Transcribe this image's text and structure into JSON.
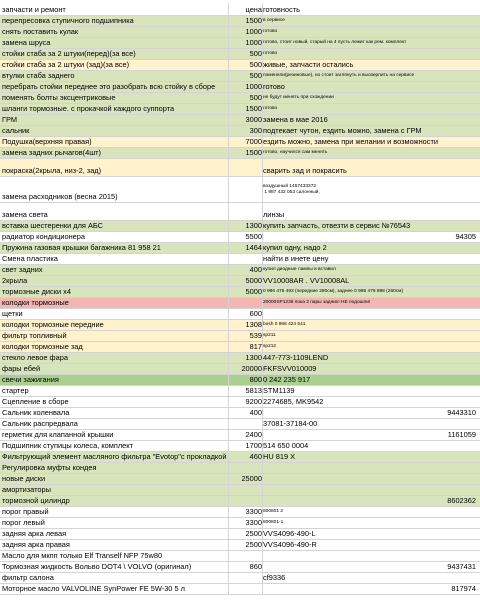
{
  "table": {
    "header": {
      "name": "запчасти и ремонт",
      "price": "цена",
      "status": "готовность"
    },
    "rows": [
      {
        "name": "перепресовка ступичного подшипника",
        "price": "1500",
        "status": "в сервисе"
      },
      {
        "name": "снять поставить кулак",
        "price": "1000",
        "status": "готово"
      },
      {
        "name": "замена шруса",
        "price": "1000",
        "status": "готово, стоит новый, старый на 4  пусть лежит как рем. комплект"
      },
      {
        "name": "стойки стаба за 2 штуки(перед)(за все)",
        "price": "500",
        "status": "готово"
      },
      {
        "name": "стойки стаба за 2 штуки (зад)(за все)",
        "price": "500",
        "status": "живые, запчасти остались"
      },
      {
        "name": "втулки стаба заднего",
        "price": "500",
        "status": "поменяли(резиновые), но стоит заглянуть и высверлить на сервисе"
      },
      {
        "name": "перебрать стойки переднее это разобрать всю стойку в сборе",
        "price": "1000",
        "status": "готово"
      },
      {
        "name": "поменять болты эксцентриковые",
        "price": "500",
        "status": "не будут менять при схождении"
      },
      {
        "name": "шланги тормозные.  с прокачкой каждого суппорта",
        "price": "1500",
        "status": "готово"
      },
      {
        "name": "ГРМ",
        "price": "3000",
        "status": "замена в мае 2016"
      },
      {
        "name": "сальник",
        "price": "300",
        "status": "подтекает чутон, ездить можно, замена с ГРМ"
      },
      {
        "name": "Подушка(верхняя правая)",
        "price": "7000",
        "status": "ездить можно, замена при желании и возможности"
      },
      {
        "name": "замена задних рычагов(4шт)",
        "price": "1500",
        "status": "готово, научился сам менять"
      },
      {
        "name": "покраска(2крыла, низ-2, зад)",
        "status": "сварить зад и покрасить"
      },
      {
        "name": "замена расходников (весна 2015)",
        "status": "воздушный 1457433372\n 1 987 432 053 салонный,"
      },
      {
        "name": "замена света",
        "status": "линзы"
      },
      {
        "name": "вставка шестеренки для АБС",
        "price": "1300",
        "status": "купить запчасть, отвезти в сервис №76543"
      },
      {
        "name": "радиатор кондиционера",
        "price": "5500",
        "code": "94305"
      },
      {
        "name": "Пружина газовая крышки багажника 81 958 21",
        "price": "1464",
        "status": "купил одну, надо 2"
      },
      {
        "name": "Смена пластика",
        "status": "найти в инете цену"
      },
      {
        "name": "свет задних",
        "price": "400",
        "status": "купил диодные лампы и вставил"
      },
      {
        "name": "2крыла",
        "price": "5000",
        "status": "VV10008AR . VV10008AL"
      },
      {
        "name": "тормозные диски х4",
        "price": "5000",
        "status": "0 986 478 493 (передние 280см), заднее 0 986 478 898 (260см)"
      },
      {
        "name": "колодки тормозные",
        "status": "20000SP1236 пока 2 пары задних! НЕ подошли!"
      },
      {
        "name": "щетки",
        "price": "600"
      },
      {
        "name": "колодки тормозные передние",
        "price": "1308",
        "status": "bosh 0 986 424 541"
      },
      {
        "name": "фильтр топливный",
        "price": "539",
        "status": "sp211"
      },
      {
        "name": "колодки тормозные зад",
        "price": "817",
        "status": "sp212"
      },
      {
        "name": "стекло левое фара",
        "price": "1300",
        "status": "447-773-1109LEND"
      },
      {
        "name": "фары ебей",
        "price": "20000",
        "status": "FKFSVV010009"
      },
      {
        "name": "свечи зажигания",
        "price": "800",
        "status": "0 242 235 917"
      },
      {
        "name": "стартер",
        "price": "5813",
        "status": "STM1139"
      },
      {
        "name": "Сцепление в сборе",
        "price": "9200",
        "status": "2274685, MK9542"
      },
      {
        "name": "Сальник коленвала",
        "price": "400",
        "code": "9443310"
      },
      {
        "name": "Сальник распредвала",
        "status": "37081-37184-00"
      },
      {
        "name": "герметик для клапанной крышки",
        "price": "2400",
        "code": "1161059"
      },
      {
        "name": "Подшипник ступицы колеса, комплект",
        "price": "1700",
        "status": "514 650 0004"
      },
      {
        "name": "Фильтрующий элемент масляного фильтра \"Evotop\"с прокладкой",
        "price": "460",
        "status": "HU 819 X"
      },
      {
        "name": "Регулировка муфты кондея"
      },
      {
        "name": "новые диски",
        "price": "25000"
      },
      {
        "name": "амортизаторы"
      },
      {
        "name": "тормозной цилиндр",
        "code": "8602362"
      },
      {
        "name": "порог правый",
        "price": "3300",
        "status": "800801 2"
      },
      {
        "name": "порог левый",
        "price": "3300",
        "status": "800801-1"
      },
      {
        "name": "задняя арка левая",
        "price": "2500",
        "status": "VVS4096-490-L"
      },
      {
        "name": "задняя арка правая",
        "price": "2500",
        "status": "VVS4096-490-R"
      },
      {
        "name": "Масло для мкпп только Elf Tranself NFP 75w80"
      },
      {
        "name": "Тормозная жидкость Вольво DOT4 \\ VOLVO (оригинал)",
        "price": "860",
        "code": "9437431"
      },
      {
        "name": "фильтр салона",
        "status": "cf9336"
      },
      {
        "name": "Моторное масло VALVOLINE SynPower FE 5W-30 5 л",
        "code": "817974"
      }
    ]
  }
}
